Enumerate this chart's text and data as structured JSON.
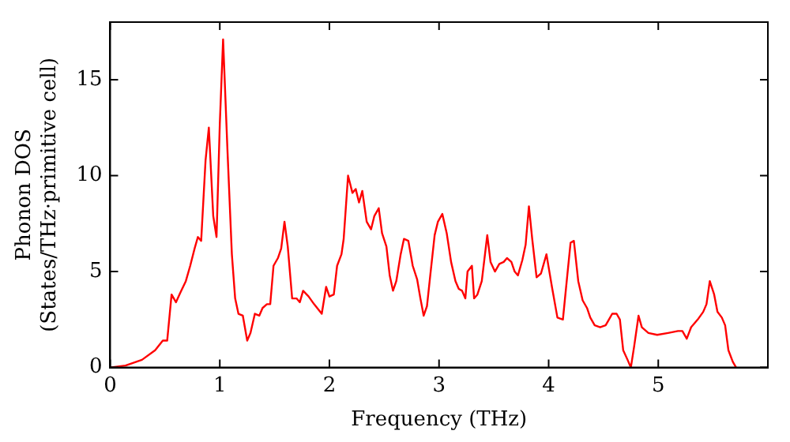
{
  "chart_data": {
    "type": "line",
    "xlabel": "Frequency (THz)",
    "ylabel": "Phonon DOS\n(States/THz·primitive cell)",
    "xlim": [
      0,
      6
    ],
    "xticks": [
      0,
      1,
      2,
      3,
      4,
      5
    ],
    "ylim": [
      0,
      18
    ],
    "yticks": [
      0,
      5,
      10,
      15
    ],
    "grid": false,
    "legend": false,
    "marker": "none",
    "line_style": "solid",
    "series": [
      {
        "color": "#ff0000",
        "x": [
          0,
          0.14,
          0.29,
          0.41,
          0.48,
          0.52,
          0.56,
          0.6,
          0.64,
          0.69,
          0.73,
          0.77,
          0.8,
          0.83,
          0.87,
          0.9,
          0.94,
          0.97,
          1.0,
          1.03,
          1.07,
          1.11,
          1.14,
          1.17,
          1.21,
          1.25,
          1.28,
          1.32,
          1.36,
          1.39,
          1.43,
          1.46,
          1.49,
          1.53,
          1.56,
          1.59,
          1.62,
          1.66,
          1.7,
          1.73,
          1.76,
          1.81,
          1.86,
          1.93,
          1.97,
          2.0,
          2.04,
          2.07,
          2.11,
          2.13,
          2.17,
          2.21,
          2.24,
          2.27,
          2.3,
          2.34,
          2.38,
          2.41,
          2.45,
          2.48,
          2.52,
          2.55,
          2.58,
          2.61,
          2.65,
          2.68,
          2.72,
          2.76,
          2.8,
          2.83,
          2.86,
          2.89,
          2.92,
          2.96,
          2.99,
          3.03,
          3.07,
          3.11,
          3.15,
          3.18,
          3.21,
          3.24,
          3.26,
          3.3,
          3.32,
          3.35,
          3.39,
          3.44,
          3.47,
          3.51,
          3.55,
          3.59,
          3.62,
          3.66,
          3.69,
          3.72,
          3.76,
          3.79,
          3.82,
          3.85,
          3.89,
          3.93,
          3.98,
          4.03,
          4.08,
          4.13,
          4.17,
          4.2,
          4.23,
          4.27,
          4.31,
          4.35,
          4.38,
          4.42,
          4.47,
          4.52,
          4.55,
          4.58,
          4.62,
          4.65,
          4.68,
          4.72,
          4.75,
          4.78,
          4.82,
          4.85,
          4.91,
          4.99,
          5.09,
          5.18,
          5.22,
          5.26,
          5.3,
          5.36,
          5.41,
          5.44,
          5.47,
          5.51,
          5.54,
          5.58,
          5.61,
          5.64,
          5.68,
          5.71
        ],
        "values": [
          0,
          0.1,
          0.4,
          0.9,
          1.4,
          1.4,
          3.8,
          3.4,
          3.9,
          4.5,
          5.3,
          6.2,
          6.8,
          6.6,
          10.8,
          12.5,
          7.9,
          6.8,
          12.7,
          17.1,
          11.3,
          5.9,
          3.6,
          2.8,
          2.7,
          1.4,
          1.8,
          2.8,
          2.7,
          3.1,
          3.3,
          3.3,
          5.3,
          5.7,
          6.2,
          7.6,
          6.3,
          3.6,
          3.6,
          3.4,
          4.0,
          3.7,
          3.3,
          2.8,
          4.2,
          3.7,
          3.8,
          5.3,
          5.9,
          6.7,
          10.0,
          9.1,
          9.3,
          8.6,
          9.2,
          7.6,
          7.2,
          7.9,
          8.3,
          7.0,
          6.3,
          4.8,
          4.0,
          4.5,
          5.9,
          6.7,
          6.6,
          5.3,
          4.6,
          3.6,
          2.7,
          3.2,
          4.8,
          6.9,
          7.6,
          8.0,
          7.0,
          5.5,
          4.5,
          4.1,
          4.0,
          3.6,
          5.0,
          5.3,
          3.6,
          3.8,
          4.5,
          6.9,
          5.5,
          5.0,
          5.4,
          5.5,
          5.7,
          5.5,
          5.0,
          4.8,
          5.6,
          6.4,
          8.4,
          6.7,
          4.7,
          4.9,
          5.9,
          4.2,
          2.6,
          2.5,
          4.8,
          6.5,
          6.6,
          4.5,
          3.5,
          3.1,
          2.6,
          2.2,
          2.1,
          2.2,
          2.5,
          2.8,
          2.8,
          2.5,
          0.9,
          0.4,
          0,
          1.1,
          2.7,
          2.1,
          1.8,
          1.7,
          1.8,
          1.9,
          1.9,
          1.5,
          2.1,
          2.5,
          2.9,
          3.3,
          4.5,
          3.8,
          2.9,
          2.6,
          2.2,
          0.9,
          0.3,
          0
        ]
      }
    ]
  }
}
